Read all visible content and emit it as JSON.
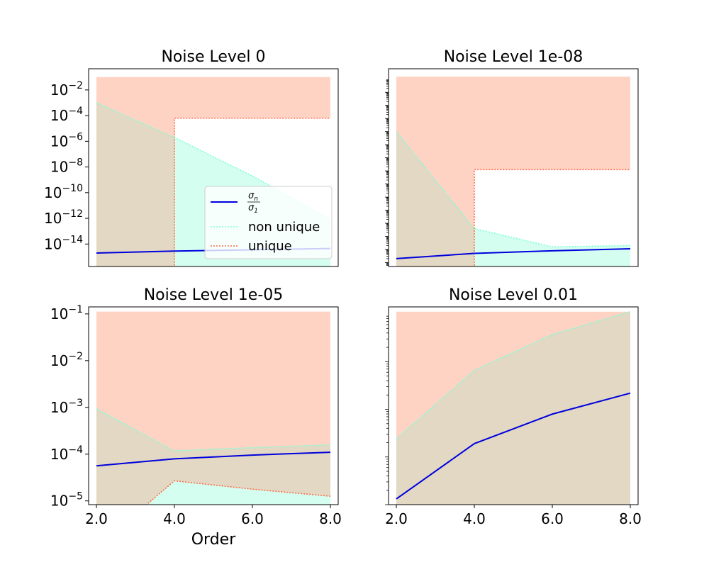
{
  "figure": {
    "colors": {
      "ratio_line": "#0000dd",
      "non_unique_line": "#7fffd4",
      "non_unique_fill": "#d4fff0",
      "unique_line": "#ff6a48",
      "unique_fill": "#ffd3c4",
      "overlap_fill": "#e2d8c3"
    },
    "legend": {
      "location": "lower-right",
      "entries": [
        {
          "key": "ratio",
          "numerator": "σ",
          "numerator_sub": "n",
          "denominator": "σ",
          "denominator_sub": "1",
          "style": "solid"
        },
        {
          "key": "non_unique",
          "label": "non unique",
          "style": "dotted"
        },
        {
          "key": "unique",
          "label": "unique",
          "style": "dotted"
        }
      ]
    },
    "shared_xlabel": "Order"
  },
  "chart_data": [
    {
      "type": "area",
      "title": "Noise Level 0",
      "x": [
        2,
        4,
        6,
        8
      ],
      "xticks": [
        "2.0",
        "4.0",
        "6.0",
        "8.0"
      ],
      "show_xticks": false,
      "xlabel": "",
      "xlim": [
        1.8,
        8.2
      ],
      "yscale": "log",
      "ylim_exp": [
        -15.75,
        -0.35
      ],
      "yticks": [
        {
          "base": "10",
          "exp": "−2",
          "v": -2
        },
        {
          "base": "10",
          "exp": "−4",
          "v": -4
        },
        {
          "base": "10",
          "exp": "−6",
          "v": -6
        },
        {
          "base": "10",
          "exp": "−8",
          "v": -8
        },
        {
          "base": "10",
          "exp": "−10",
          "v": -10
        },
        {
          "base": "10",
          "exp": "−12",
          "v": -12
        },
        {
          "base": "10",
          "exp": "−14",
          "v": -14
        }
      ],
      "show_yticks": true,
      "legend": true,
      "series": [
        {
          "key": "ratio",
          "values_log10": [
            -14.7,
            -14.55,
            -14.45,
            -14.35
          ]
        },
        {
          "key": "non_unique",
          "values_log10": [
            -3.0,
            -5.7,
            -8.7,
            -12.1
          ]
        },
        {
          "key": "unique",
          "lower_log10": [
            -16.0,
            -4.2,
            -4.2,
            -4.2
          ],
          "upper_log10": -1.0
        }
      ]
    },
    {
      "type": "area",
      "title": "Noise Level 1e-08",
      "x": [
        2,
        4,
        6,
        8
      ],
      "xticks": [
        "2.0",
        "4.0",
        "6.0",
        "8.0"
      ],
      "show_xticks": false,
      "xlabel": "",
      "xlim": [
        1.8,
        8.2
      ],
      "yscale": "log",
      "ylim_exp": [
        -15.3,
        -0.2
      ],
      "yticks": [],
      "show_yticks": false,
      "minor_ticks": true,
      "legend": false,
      "series": [
        {
          "key": "ratio",
          "values_log10": [
            -14.7,
            -14.3,
            -14.1,
            -13.95
          ]
        },
        {
          "key": "non_unique",
          "values_log10": [
            -5.0,
            -12.4,
            -13.8,
            -13.7
          ]
        },
        {
          "key": "unique",
          "lower_log10": [
            -16.0,
            -7.9,
            -7.9,
            -7.9
          ],
          "upper_log10": -0.8
        }
      ]
    },
    {
      "type": "area",
      "title": "Noise Level 1e-05",
      "x": [
        2,
        4,
        6,
        8
      ],
      "xticks": [
        "2.0",
        "4.0",
        "6.0",
        "8.0"
      ],
      "show_xticks": true,
      "xlabel": "Order",
      "xlim": [
        1.8,
        8.2
      ],
      "yscale": "log",
      "ylim_exp": [
        -5.08,
        -0.85
      ],
      "yticks": [
        {
          "base": "10",
          "exp": "−1",
          "v": -1
        },
        {
          "base": "10",
          "exp": "−2",
          "v": -2
        },
        {
          "base": "10",
          "exp": "−3",
          "v": -3
        },
        {
          "base": "10",
          "exp": "−4",
          "v": -4
        },
        {
          "base": "10",
          "exp": "−5",
          "v": -5
        }
      ],
      "show_yticks": true,
      "legend": false,
      "series": [
        {
          "key": "ratio",
          "values_log10": [
            -4.25,
            -4.1,
            -4.02,
            -3.96
          ]
        },
        {
          "key": "non_unique",
          "values_log10": [
            -3.03,
            -3.93,
            -3.86,
            -3.8
          ]
        },
        {
          "key": "unique",
          "lower_log10": [
            -6.0,
            -4.57,
            -4.75,
            -4.9
          ],
          "upper_log10": -0.95
        }
      ]
    },
    {
      "type": "area",
      "title": "Noise Level 0.01",
      "x": [
        2,
        4,
        6,
        8
      ],
      "xticks": [
        "2.0",
        "4.0",
        "6.0",
        "8.0"
      ],
      "show_xticks": true,
      "xlabel": "",
      "xlim": [
        1.8,
        8.2
      ],
      "yscale": "log",
      "ylim_exp": [
        -5.0,
        -0.85
      ],
      "yticks": [],
      "show_yticks": false,
      "minor_ticks": true,
      "legend": false,
      "series": [
        {
          "key": "ratio",
          "values_log10": [
            -4.88,
            -3.72,
            -3.1,
            -2.66
          ]
        },
        {
          "key": "non_unique",
          "values_log10": [
            -3.62,
            -2.18,
            -1.43,
            -0.95
          ]
        },
        {
          "key": "unique",
          "lower_log10": [
            -6.0,
            -6.0,
            -6.0,
            -6.0
          ],
          "upper_log10": -0.95
        }
      ]
    }
  ]
}
